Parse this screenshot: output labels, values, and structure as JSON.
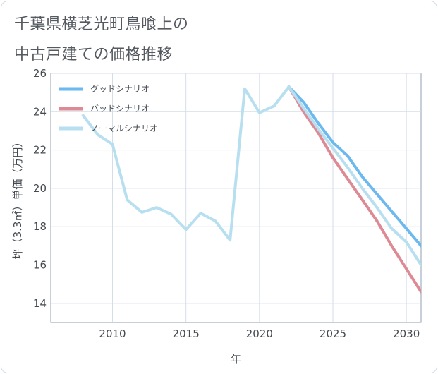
{
  "title_line1": "千葉県横芝光町鳥喰上の",
  "title_line2": "中古戸建ての価格推移",
  "chart_data": {
    "type": "line",
    "title": "千葉県横芝光町鳥喰上の中古戸建ての価格推移",
    "xlabel": "年",
    "ylabel": "坪（3.3㎡）単価（万円）",
    "xlim": [
      2005.8,
      2031.0
    ],
    "ylim": [
      13.0,
      26.0
    ],
    "xticks": [
      2010,
      2015,
      2020,
      2025,
      2030
    ],
    "yticks": [
      14,
      16,
      18,
      20,
      22,
      24,
      26
    ],
    "grid": true,
    "legend_position": "top-left",
    "series": [
      {
        "name": "グッドシナリオ",
        "color": "#6bb9ee",
        "x": [
          2022,
          2023,
          2024,
          2025,
          2026,
          2027,
          2028,
          2029,
          2030,
          2031
        ],
        "y": [
          25.3,
          24.5,
          23.4,
          22.4,
          21.7,
          20.6,
          19.7,
          18.8,
          17.9,
          17.0
        ]
      },
      {
        "name": "バッドシナリオ",
        "color": "#de8a94",
        "x": [
          2022,
          2023,
          2024,
          2025,
          2026,
          2027,
          2028,
          2029,
          2030,
          2031
        ],
        "y": [
          25.3,
          24.0,
          22.9,
          21.6,
          20.5,
          19.4,
          18.3,
          17.0,
          15.8,
          14.6
        ]
      },
      {
        "name": "ノーマルシナリオ",
        "color": "#b8dff0",
        "x": [
          2008,
          2009,
          2010,
          2011,
          2012,
          2013,
          2014,
          2015,
          2016,
          2017,
          2018,
          2019,
          2020,
          2021,
          2022,
          2023,
          2024,
          2025,
          2026,
          2027,
          2028,
          2029,
          2030,
          2031
        ],
        "y": [
          23.8,
          22.8,
          22.3,
          19.4,
          18.75,
          19.0,
          18.65,
          17.85,
          18.7,
          18.3,
          17.3,
          25.2,
          23.95,
          24.3,
          25.3,
          24.2,
          23.1,
          22.1,
          21.1,
          20.0,
          19.0,
          17.9,
          17.2,
          16.0
        ]
      }
    ]
  }
}
